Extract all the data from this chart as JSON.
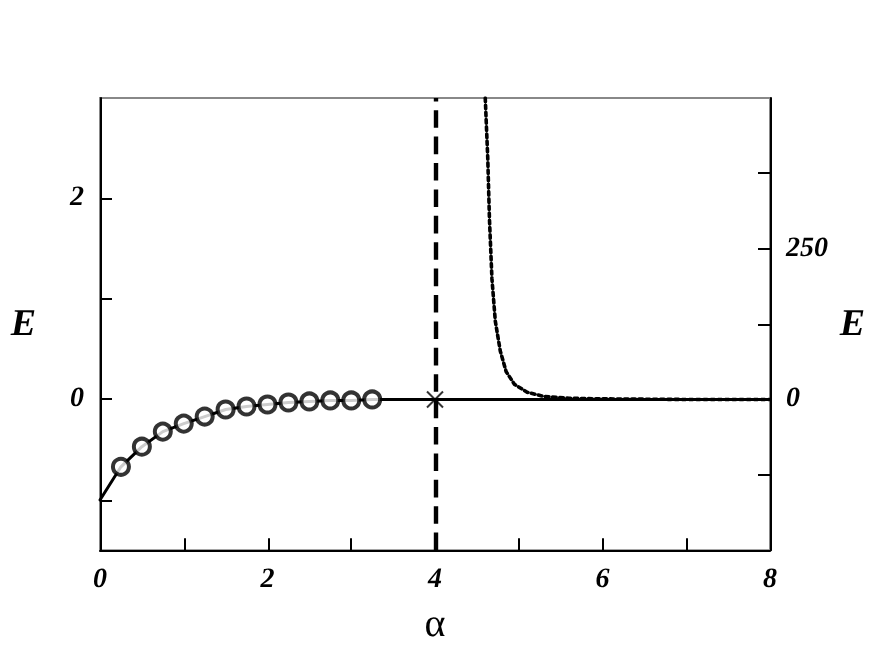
{
  "chart_data": {
    "type": "line",
    "xlabel": "α",
    "ylabel": "E",
    "y2label": "E",
    "xlim": [
      0,
      8
    ],
    "xticks": [
      0,
      {
        "value": 1,
        "label": null
      },
      2,
      {
        "value": 3,
        "label": null
      },
      4,
      {
        "value": 5,
        "label": null
      },
      6,
      {
        "value": 7,
        "label": null
      },
      8
    ],
    "ylim": [
      -1.5,
      3
    ],
    "yticks": [
      {
        "value": -1,
        "label": null
      },
      0,
      {
        "value": 1,
        "label": null
      },
      2
    ],
    "y2lim": [
      -250,
      500
    ],
    "y2ticks": [
      {
        "value": -125,
        "label": null
      },
      0,
      {
        "value": 125,
        "label": null
      },
      250,
      {
        "value": 375,
        "label": null
      }
    ],
    "grid": false,
    "series": [
      {
        "type": "line",
        "color": "#000000",
        "marker": "none",
        "line_style": "solid",
        "x": [
          0,
          0.25,
          0.5,
          0.75,
          1,
          1.25,
          1.5,
          1.75,
          2,
          2.25,
          2.5,
          2.75,
          3,
          3.25,
          4,
          8
        ],
        "values": [
          -1,
          -0.67,
          -0.47,
          -0.32,
          -0.24,
          -0.17,
          -0.1,
          -0.07,
          -0.05,
          -0.03,
          -0.02,
          -0.01,
          -0.01,
          0,
          0,
          0
        ]
      },
      {
        "type": "scatter",
        "color": "#000000",
        "marker": "circle",
        "x": [
          0.25,
          0.5,
          0.75,
          1,
          1.25,
          1.5,
          1.75,
          2,
          2.25,
          2.5,
          2.75,
          3,
          3.25
        ],
        "values": [
          -0.67,
          -0.47,
          -0.32,
          -0.24,
          -0.17,
          -0.1,
          -0.07,
          -0.05,
          -0.03,
          -0.02,
          -0.01,
          -0.01,
          0
        ]
      },
      {
        "type": "scatter",
        "color": "#000000",
        "marker": "cross",
        "x": [
          4
        ],
        "values": [
          0
        ]
      },
      {
        "type": "line",
        "color": "#000000",
        "marker": "none",
        "line_style": "dotted",
        "axis": "y2",
        "x": [
          4.6,
          4.63,
          4.65,
          4.68,
          4.72,
          4.78,
          4.85,
          4.95,
          5.1,
          5.3,
          5.6,
          6,
          7,
          8
        ],
        "values": [
          500,
          400,
          300,
          200,
          130,
          80,
          46,
          25,
          12,
          5,
          2,
          1,
          0,
          0
        ]
      }
    ],
    "ref_lines": [
      {
        "axis": "x",
        "value": 4,
        "color": "#000000",
        "line_style": "dashed"
      }
    ]
  }
}
